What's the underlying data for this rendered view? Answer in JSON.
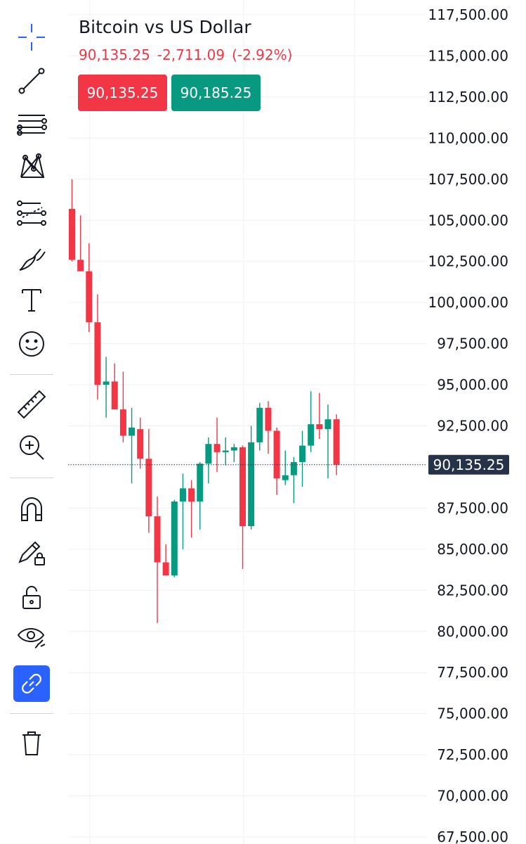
{
  "instrument": {
    "title": "Bitcoin vs US Dollar",
    "last_price": "90,135.25",
    "change": "-2,711.09",
    "change_pct": "(-2.92%)",
    "sell_price": "90,135.25",
    "buy_price": "90,185.25",
    "current_price_label": "90,135.25"
  },
  "colors": {
    "up": "#089981",
    "down": "#f23645",
    "accent": "#2962ff",
    "price_tag_bg": "#253248"
  },
  "toolbar": {
    "tools": [
      {
        "name": "crosshair-icon"
      },
      {
        "name": "trend-line-icon"
      },
      {
        "name": "horizontal-lines-icon"
      },
      {
        "name": "pattern-icon"
      },
      {
        "name": "fib-retracement-icon"
      },
      {
        "name": "brush-icon"
      },
      {
        "name": "text-icon"
      },
      {
        "name": "emoji-icon"
      },
      {
        "name": "ruler-icon"
      },
      {
        "name": "zoom-in-icon"
      },
      {
        "name": "magnet-icon"
      },
      {
        "name": "lock-drawings-icon"
      },
      {
        "name": "unlock-icon"
      },
      {
        "name": "hide-drawings-icon"
      },
      {
        "name": "link-icon",
        "active": true
      },
      {
        "name": "trash-icon"
      }
    ]
  },
  "chart_data": {
    "type": "candlestick",
    "title": "Bitcoin vs US Dollar",
    "y_axis_ticks": [
      "117,500.00",
      "115,000.00",
      "112,500.00",
      "110,000.00",
      "107,500.00",
      "105,000.00",
      "102,500.00",
      "100,000.00",
      "97,500.00",
      "95,000.00",
      "92,500.00",
      "90,000.00",
      "87,500.00",
      "85,000.00",
      "82,500.00",
      "80,000.00",
      "77,500.00",
      "75,000.00",
      "72,500.00",
      "70,000.00",
      "67,500.00"
    ],
    "y_range": [
      67500,
      117500
    ],
    "current_price": 90135.25,
    "grid": true,
    "candles": [
      {
        "o": 105700,
        "h": 107500,
        "l": 102500,
        "c": 102600
      },
      {
        "o": 102600,
        "h": 105300,
        "l": 101900,
        "c": 101900
      },
      {
        "o": 101900,
        "h": 103600,
        "l": 98200,
        "c": 98800
      },
      {
        "o": 98800,
        "h": 100500,
        "l": 94100,
        "c": 95000
      },
      {
        "o": 95000,
        "h": 96700,
        "l": 93000,
        "c": 95200
      },
      {
        "o": 95200,
        "h": 96300,
        "l": 93500,
        "c": 93500
      },
      {
        "o": 93500,
        "h": 95800,
        "l": 91500,
        "c": 91900
      },
      {
        "o": 91900,
        "h": 93600,
        "l": 89000,
        "c": 92400
      },
      {
        "o": 92300,
        "h": 93000,
        "l": 89900,
        "c": 90500
      },
      {
        "o": 90500,
        "h": 92300,
        "l": 86000,
        "c": 87000
      },
      {
        "o": 87000,
        "h": 88200,
        "l": 80500,
        "c": 84200
      },
      {
        "o": 84200,
        "h": 85300,
        "l": 83500,
        "c": 83400
      },
      {
        "o": 83400,
        "h": 88000,
        "l": 83300,
        "c": 87900
      },
      {
        "o": 87900,
        "h": 89600,
        "l": 85000,
        "c": 88700
      },
      {
        "o": 88700,
        "h": 89200,
        "l": 85700,
        "c": 87900
      },
      {
        "o": 87900,
        "h": 90300,
        "l": 86200,
        "c": 90200
      },
      {
        "o": 90200,
        "h": 91800,
        "l": 89000,
        "c": 91400
      },
      {
        "o": 91400,
        "h": 93000,
        "l": 89700,
        "c": 90900
      },
      {
        "o": 90900,
        "h": 91800,
        "l": 90100,
        "c": 91000
      },
      {
        "o": 91000,
        "h": 91400,
        "l": 90300,
        "c": 91200
      },
      {
        "o": 91200,
        "h": 91300,
        "l": 83800,
        "c": 86400
      },
      {
        "o": 86400,
        "h": 92500,
        "l": 86200,
        "c": 91500
      },
      {
        "o": 91500,
        "h": 93900,
        "l": 91000,
        "c": 93600
      },
      {
        "o": 93600,
        "h": 94000,
        "l": 90800,
        "c": 92200
      },
      {
        "o": 92200,
        "h": 92400,
        "l": 88300,
        "c": 89300
      },
      {
        "o": 89200,
        "h": 91000,
        "l": 88900,
        "c": 89500
      },
      {
        "o": 89500,
        "h": 90600,
        "l": 87800,
        "c": 90300
      },
      {
        "o": 90300,
        "h": 92200,
        "l": 88800,
        "c": 91300
      },
      {
        "o": 91300,
        "h": 94600,
        "l": 90900,
        "c": 92600
      },
      {
        "o": 92600,
        "h": 94500,
        "l": 91700,
        "c": 92300
      },
      {
        "o": 92300,
        "h": 93800,
        "l": 89300,
        "c": 92900
      },
      {
        "o": 92900,
        "h": 93200,
        "l": 89500,
        "c": 90135
      }
    ]
  }
}
